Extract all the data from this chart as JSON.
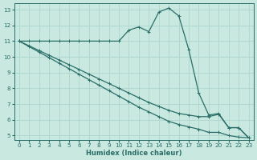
{
  "background_color": "#c8e8e0",
  "grid_color": "#b0d8d0",
  "line_color": "#2a6e68",
  "xlabel": "Humidex (Indice chaleur)",
  "xlim": [
    -0.5,
    23.5
  ],
  "ylim": [
    4.7,
    13.4
  ],
  "yticks": [
    5,
    6,
    7,
    8,
    9,
    10,
    11,
    12,
    13
  ],
  "xticks": [
    0,
    1,
    2,
    3,
    4,
    5,
    6,
    7,
    8,
    9,
    10,
    11,
    12,
    13,
    14,
    15,
    16,
    17,
    18,
    19,
    20,
    21,
    22,
    23
  ],
  "curve1_x": [
    0,
    1,
    2,
    3,
    4,
    5,
    6,
    7,
    8,
    9,
    10,
    11,
    12,
    13,
    14,
    15,
    16,
    17,
    18,
    19,
    20,
    21,
    22,
    23
  ],
  "curve1_y": [
    11,
    11,
    11,
    11,
    11,
    11,
    11,
    11,
    11,
    11,
    11,
    11.7,
    11.9,
    11.6,
    12.85,
    13.1,
    12.6,
    10.45,
    7.7,
    6.3,
    6.4,
    5.5,
    5.5,
    4.85
  ],
  "curve2_x": [
    0,
    1,
    2,
    3,
    4,
    5,
    6,
    7,
    8,
    9,
    10,
    11,
    12,
    13,
    14,
    15,
    16,
    17,
    18,
    19,
    20,
    21,
    22,
    23
  ],
  "curve2_y": [
    11,
    10.7,
    10.4,
    10.1,
    9.8,
    9.5,
    9.2,
    8.9,
    8.6,
    8.3,
    8.0,
    7.7,
    7.4,
    7.1,
    6.85,
    6.6,
    6.4,
    6.3,
    6.2,
    6.2,
    6.35,
    5.5,
    5.5,
    4.85
  ],
  "curve3_x": [
    0,
    1,
    2,
    3,
    4,
    5,
    6,
    7,
    8,
    9,
    10,
    11,
    12,
    13,
    14,
    15,
    16,
    17,
    18,
    19,
    20,
    21,
    22,
    23
  ],
  "curve3_y": [
    11,
    10.65,
    10.3,
    9.95,
    9.6,
    9.25,
    8.9,
    8.55,
    8.2,
    7.85,
    7.5,
    7.15,
    6.8,
    6.5,
    6.2,
    5.9,
    5.7,
    5.55,
    5.4,
    5.2,
    5.2,
    5.0,
    4.9,
    4.85
  ]
}
